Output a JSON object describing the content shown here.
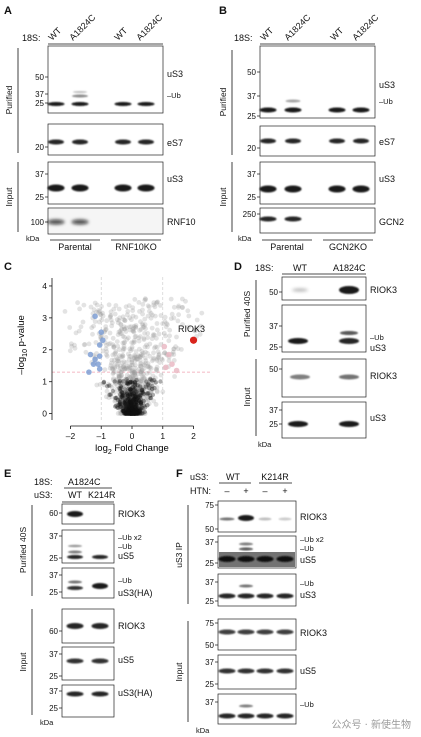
{
  "panels": {
    "A": {
      "letter": "A",
      "header_label": "18S:",
      "lanes": [
        "WT",
        "A1824C",
        "WT",
        "A1824C"
      ],
      "side_labels": [
        "Purified",
        "Input"
      ],
      "blots": [
        {
          "name": "uS3",
          "ladder": [
            "50",
            "37",
            "25"
          ],
          "extra": [
            "–Ub"
          ]
        },
        {
          "name": "eS7",
          "ladder": [
            "20"
          ]
        },
        {
          "name": "uS3",
          "ladder": [
            "37",
            "25"
          ]
        },
        {
          "name": "RNF10",
          "ladder": [
            "100"
          ]
        }
      ],
      "kda": "kDa",
      "groups": [
        "Parental",
        "RNF10KO"
      ]
    },
    "B": {
      "letter": "B",
      "header_label": "18S:",
      "lanes": [
        "WT",
        "A1824C",
        "WT",
        "A1824C"
      ],
      "side_labels": [
        "Purified",
        "Input"
      ],
      "blots": [
        {
          "name": "uS3",
          "ladder": [
            "50",
            "37",
            "25"
          ],
          "extra": [
            "–Ub"
          ]
        },
        {
          "name": "eS7",
          "ladder": [
            "20"
          ]
        },
        {
          "name": "uS3",
          "ladder": [
            "37",
            "25"
          ]
        },
        {
          "name": "GCN2",
          "ladder": [
            "250"
          ]
        }
      ],
      "kda": "kDa",
      "groups": [
        "Parental",
        "GCN2KO"
      ]
    },
    "C": {
      "letter": "C",
      "ylabel_main": "–log",
      "ylabel_sub": "10",
      "ylabel_tail": " p-value",
      "xlabel_main": "log",
      "xlabel_sub": "2",
      "xlabel_tail": " Fold Change",
      "highlight": "RIOK3"
    },
    "D": {
      "letter": "D",
      "header_label": "18S:",
      "lanes": [
        "WT",
        "A1824C"
      ],
      "side_labels": [
        "Purified 40S",
        "Input"
      ],
      "blots": [
        {
          "name": "RIOK3",
          "ladder": [
            "50"
          ]
        },
        {
          "name": "uS3",
          "ladder": [
            "37",
            "25"
          ],
          "extra": [
            "–Ub"
          ]
        },
        {
          "name": "RIOK3",
          "ladder": [
            "50"
          ]
        },
        {
          "name": "uS3",
          "ladder": [
            "37",
            "25"
          ]
        }
      ],
      "kda": "kDa"
    },
    "E": {
      "letter": "E",
      "header_label_1": "18S:",
      "header_value_1": "A1824C",
      "header_label_2": "uS3:",
      "lanes": [
        "WT",
        "K214R"
      ],
      "side_labels": [
        "Purified 40S",
        "Input"
      ],
      "blots": [
        {
          "name": "RIOK3",
          "ladder": [
            "60"
          ]
        },
        {
          "name": "uS5",
          "ladder": [
            "37",
            "25"
          ],
          "extra": [
            "–Ub x2",
            "–Ub"
          ]
        },
        {
          "name": "uS3(HA)",
          "ladder": [
            "37",
            "25"
          ],
          "extra": [
            "–Ub"
          ]
        },
        {
          "name": "RIOK3",
          "ladder": [
            "60"
          ]
        },
        {
          "name": "uS5",
          "ladder": [
            "37",
            "25"
          ]
        },
        {
          "name": "uS3(HA)",
          "ladder": [
            "37",
            "25"
          ]
        }
      ],
      "kda": "kDa"
    },
    "F": {
      "letter": "F",
      "header_label_1": "uS3:",
      "groups": [
        "WT",
        "K214R"
      ],
      "header_label_2": "HTN:",
      "htn": [
        "–",
        "+",
        "–",
        "+"
      ],
      "side_labels": [
        "uS3 IP",
        "Input"
      ],
      "blots": [
        {
          "name": "RIOK3",
          "ladder": [
            "75",
            "50"
          ]
        },
        {
          "name": "uS5",
          "ladder": [
            "37",
            "25"
          ],
          "extra": [
            "–Ub x2",
            "–Ub"
          ]
        },
        {
          "name": "uS3",
          "ladder": [
            "37",
            "25"
          ],
          "extra": [
            "–Ub"
          ]
        },
        {
          "name": "RIOK3",
          "ladder": [
            "75",
            "50"
          ]
        },
        {
          "name": "uS5",
          "ladder": [
            "37",
            "25"
          ]
        },
        {
          "name": "uS3",
          "ladder": [
            "37"
          ],
          "extra": [
            "–Ub"
          ]
        }
      ],
      "kda": "kDa"
    }
  },
  "volcano": {
    "type": "scatter",
    "x_ticks": [
      "–2",
      "–1",
      "0",
      "1",
      "2"
    ],
    "y_ticks": [
      "0",
      "1",
      "2",
      "3",
      "4"
    ],
    "xlim": [
      -2.6,
      2.6
    ],
    "ylim": [
      -0.2,
      4.5
    ],
    "threshold_y": 1.3,
    "threshold_x": [
      -1,
      1
    ],
    "colors": {
      "up": "#e9b5c0",
      "down": "#7f9fd3",
      "ns": "#9a9a9a",
      "highlight": "#d9241c"
    },
    "highlight_point": {
      "x": 2.0,
      "y": 2.3
    },
    "blue_points": [
      [
        -1.2,
        3.05
      ],
      [
        -1.0,
        2.55
      ],
      [
        -0.95,
        2.3
      ],
      [
        -1.05,
        2.15
      ],
      [
        -1.35,
        1.85
      ],
      [
        -1.05,
        1.8
      ],
      [
        -1.2,
        1.7
      ],
      [
        -1.25,
        1.55
      ],
      [
        -1.4,
        1.3
      ],
      [
        -1.05,
        1.4
      ],
      [
        -1.1,
        1.55
      ]
    ],
    "pink_points": [
      [
        1.05,
        2.1
      ],
      [
        1.2,
        1.85
      ],
      [
        1.3,
        1.55
      ],
      [
        1.1,
        1.45
      ],
      [
        1.45,
        1.35
      ]
    ]
  },
  "watermark": "公众号 · 新使生物"
}
